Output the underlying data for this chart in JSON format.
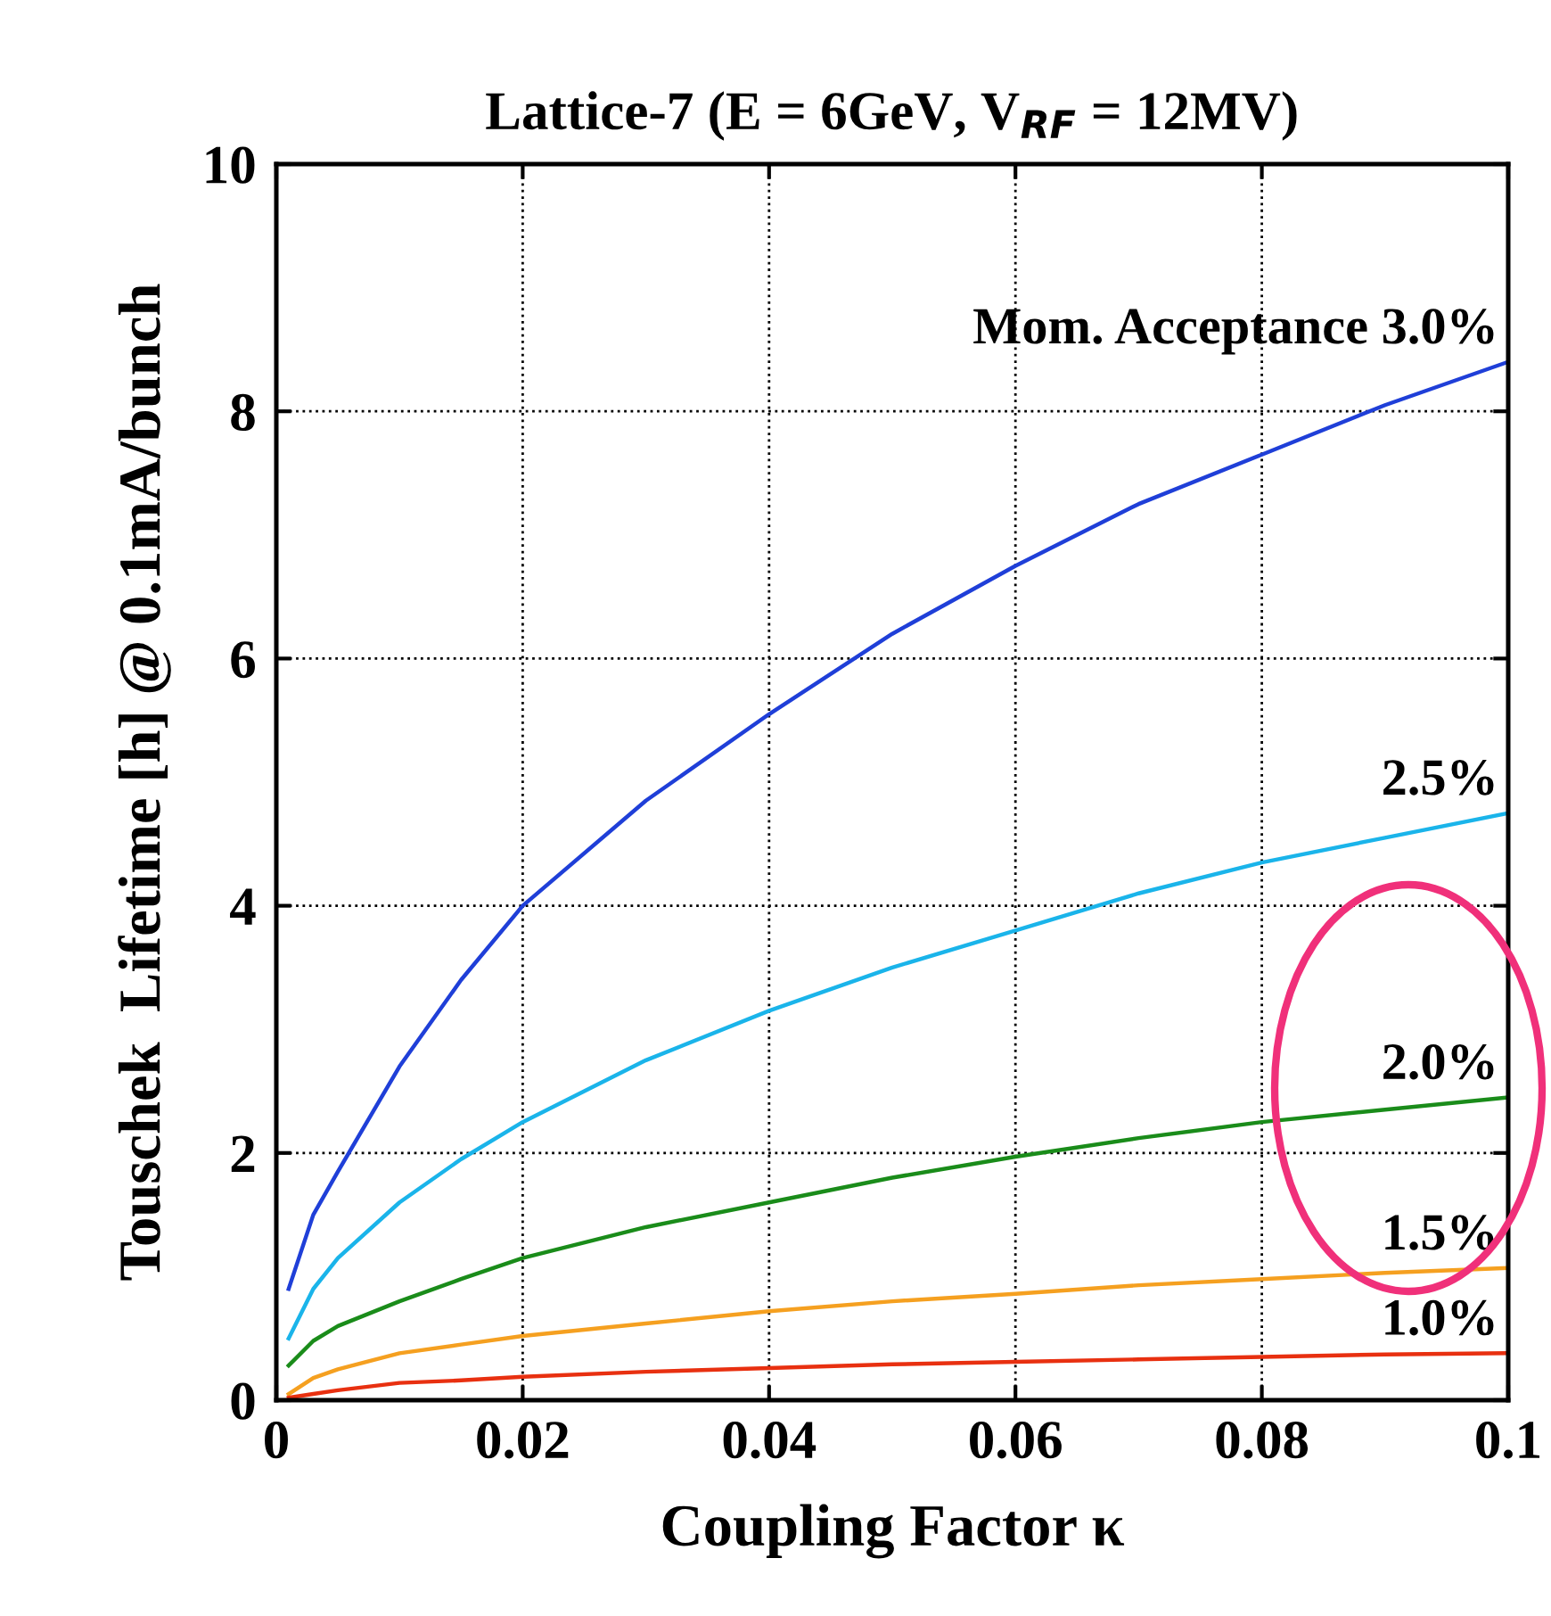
{
  "chart_data": {
    "type": "line",
    "title": "Lattice-7 (E = 6GeV, V$_{RF}$ = 12MV)",
    "xlabel": "Coupling Factor κ",
    "ylabel": "Touschek  Lifetime [h] @ 0.1mA/bunch",
    "x": [
      0.001,
      0.003,
      0.005,
      0.01,
      0.015,
      0.02,
      0.03,
      0.04,
      0.05,
      0.06,
      0.07,
      0.08,
      0.09,
      0.1
    ],
    "series": [
      {
        "name": "Mom. Acceptance 3.0%",
        "color": "#1f3fd8",
        "values": [
          0.9,
          1.5,
          1.85,
          2.7,
          3.4,
          4.0,
          4.85,
          5.55,
          6.2,
          6.75,
          7.25,
          7.65,
          8.05,
          8.4
        ]
      },
      {
        "name": "2.5%",
        "color": "#1ab4ea",
        "values": [
          0.5,
          0.9,
          1.15,
          1.6,
          1.95,
          2.25,
          2.75,
          3.15,
          3.5,
          3.8,
          4.1,
          4.35,
          4.55,
          4.75
        ]
      },
      {
        "name": "2.0%",
        "color": "#1a8c1a",
        "values": [
          0.28,
          0.48,
          0.6,
          0.8,
          0.98,
          1.15,
          1.4,
          1.6,
          1.8,
          1.97,
          2.12,
          2.25,
          2.35,
          2.45
        ]
      },
      {
        "name": "1.5%",
        "color": "#f5a020",
        "values": [
          0.05,
          0.18,
          0.25,
          0.38,
          0.45,
          0.52,
          0.62,
          0.72,
          0.8,
          0.86,
          0.93,
          0.98,
          1.03,
          1.07
        ]
      },
      {
        "name": "1.0%",
        "color": "#e83010",
        "values": [
          0.02,
          0.05,
          0.08,
          0.14,
          0.16,
          0.19,
          0.23,
          0.26,
          0.29,
          0.31,
          0.33,
          0.35,
          0.37,
          0.38
        ]
      }
    ],
    "xlim": [
      0,
      0.1
    ],
    "xticks": [
      0,
      0.02,
      0.04,
      0.06,
      0.08,
      0.1
    ],
    "ylim": [
      0,
      10
    ],
    "yticks": [
      0,
      2,
      4,
      6,
      8,
      10
    ],
    "grid": true,
    "legend": false,
    "marker": "none",
    "line_style": "solid"
  }
}
